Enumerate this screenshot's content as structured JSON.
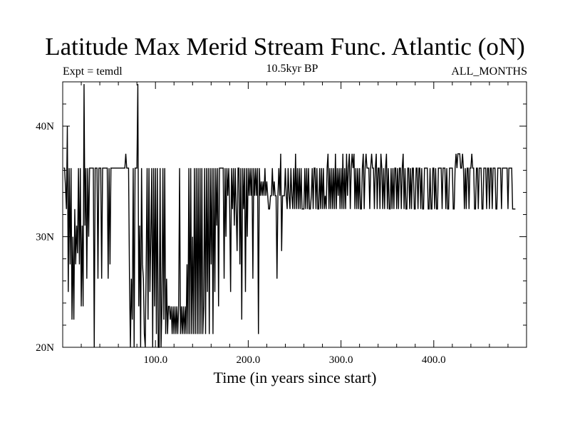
{
  "chart_data": {
    "type": "line",
    "title": "Latitude Max Merid Stream Func. Atlantic (oN)",
    "subtitle": "10.5kyr BP",
    "left_annotation": "Expt = temdl",
    "right_annotation": "ALL_MONTHS",
    "xlabel": "Time (in years since start)",
    "ylabel": "",
    "xlim": [
      0,
      500
    ],
    "ylim": [
      20,
      44
    ],
    "x_ticks": [
      {
        "value": 100,
        "label": "100.0"
      },
      {
        "value": 200,
        "label": "200.0"
      },
      {
        "value": 300,
        "label": "300.0"
      },
      {
        "value": 400,
        "label": "400.0"
      }
    ],
    "y_ticks": [
      {
        "value": 20,
        "label": "20N"
      },
      {
        "value": 30,
        "label": "30N"
      },
      {
        "value": 40,
        "label": "40N"
      }
    ],
    "grid": false,
    "series": [
      {
        "color": "#000000",
        "x_start": 1,
        "x_step": 1,
        "values": [
          36.2,
          36.2,
          34.5,
          32.5,
          40.0,
          25.0,
          36.2,
          27.5,
          36.2,
          22.5,
          30.0,
          22.5,
          32.5,
          27.5,
          31.0,
          28.5,
          36.2,
          27.5,
          36.2,
          23.7,
          31.0,
          23.7,
          43.8,
          31.0,
          36.2,
          26.2,
          36.2,
          30.0,
          36.2,
          36.2,
          36.2,
          36.2,
          36.2,
          20.0,
          36.2,
          36.2,
          36.2,
          26.2,
          36.2,
          36.2,
          36.2,
          26.2,
          36.2,
          36.2,
          36.2,
          36.2,
          36.2,
          36.2,
          26.2,
          36.2,
          27.5,
          36.2,
          36.2,
          36.2,
          36.2,
          36.2,
          36.2,
          36.2,
          36.2,
          36.2,
          36.2,
          36.2,
          36.2,
          36.2,
          36.2,
          36.2,
          36.2,
          37.5,
          36.2,
          36.2,
          36.2,
          26.2,
          20.0,
          26.2,
          22.5,
          36.2,
          20.0,
          36.2,
          36.2,
          36.2,
          43.8,
          23.7,
          31.0,
          20.0,
          36.2,
          27.5,
          26.2,
          21.2,
          20.0,
          27.5,
          36.2,
          22.5,
          36.2,
          25.0,
          30.0,
          36.2,
          20.0,
          36.2,
          23.7,
          36.2,
          21.2,
          36.2,
          20.0,
          20.0,
          36.2,
          20.0,
          23.7,
          36.2,
          22.5,
          36.2,
          21.2,
          26.2,
          21.2,
          23.7,
          23.7,
          22.5,
          23.7,
          21.2,
          23.7,
          21.2,
          23.7,
          21.2,
          23.7,
          21.2,
          23.7,
          36.2,
          21.2,
          23.7,
          21.2,
          23.7,
          21.2,
          23.7,
          21.2,
          27.5,
          21.2,
          36.2,
          21.2,
          36.2,
          21.2,
          30.0,
          21.2,
          36.2,
          21.2,
          36.2,
          21.2,
          36.2,
          21.2,
          36.2,
          21.2,
          36.2,
          21.2,
          23.7,
          36.2,
          21.2,
          36.2,
          25.0,
          36.2,
          21.2,
          36.2,
          27.5,
          36.2,
          21.2,
          36.2,
          25.0,
          36.2,
          31.0,
          36.2,
          23.7,
          36.2,
          36.2,
          36.2,
          36.2,
          36.2,
          26.2,
          36.2,
          30.0,
          36.2,
          33.7,
          36.2,
          32.5,
          25.0,
          36.2,
          32.5,
          36.2,
          31.0,
          36.2,
          32.5,
          28.7,
          36.2,
          36.2,
          27.5,
          36.2,
          22.5,
          36.2,
          32.5,
          36.2,
          25.0,
          36.2,
          30.0,
          36.2,
          33.7,
          36.2,
          33.7,
          36.2,
          26.2,
          36.2,
          33.7,
          36.2,
          33.7,
          36.2,
          21.2,
          36.2,
          33.7,
          35.0,
          33.7,
          35.0,
          33.7,
          36.2,
          33.7,
          35.0,
          33.7,
          32.5,
          32.5,
          33.7,
          33.7,
          36.2,
          33.7,
          35.0,
          33.7,
          33.7,
          26.2,
          33.7,
          36.2,
          33.7,
          37.5,
          28.7,
          33.7,
          33.7,
          33.7,
          36.2,
          33.7,
          32.5,
          36.2,
          33.7,
          32.5,
          36.2,
          33.7,
          32.5,
          36.2,
          32.5,
          37.5,
          32.5,
          36.2,
          32.5,
          36.2,
          32.5,
          36.2,
          32.5,
          32.5,
          32.5,
          36.2,
          32.5,
          36.2,
          32.5,
          36.2,
          32.5,
          32.5,
          33.7,
          36.2,
          32.5,
          36.2,
          36.2,
          32.5,
          36.2,
          32.5,
          32.5,
          36.2,
          32.5,
          36.2,
          32.5,
          36.2,
          32.5,
          33.7,
          32.5,
          36.2,
          37.5,
          32.5,
          36.2,
          32.5,
          36.2,
          32.5,
          36.2,
          32.5,
          37.5,
          32.5,
          36.2,
          33.7,
          36.2,
          32.5,
          36.2,
          32.5,
          37.5,
          32.5,
          36.2,
          32.5,
          37.5,
          33.7,
          36.2,
          37.5,
          32.5,
          36.2,
          37.5,
          36.2,
          37.5,
          32.5,
          36.2,
          32.5,
          36.2,
          32.5,
          36.2,
          32.5,
          32.5,
          36.2,
          37.5,
          32.5,
          36.2,
          37.5,
          36.2,
          36.2,
          36.2,
          32.5,
          36.2,
          37.5,
          36.2,
          36.2,
          32.5,
          36.2,
          37.5,
          32.5,
          36.2,
          36.2,
          32.5,
          37.5,
          36.2,
          32.5,
          36.2,
          32.5,
          36.2,
          37.5,
          32.5,
          36.2,
          32.5,
          32.5,
          36.2,
          32.5,
          36.2,
          32.5,
          36.2,
          36.2,
          32.5,
          36.2,
          32.5,
          36.2,
          36.2,
          32.5,
          36.2,
          37.5,
          32.5,
          36.2,
          32.5,
          32.5,
          36.2,
          36.2,
          32.5,
          36.2,
          32.5,
          36.2,
          36.2,
          32.5,
          32.5,
          36.2,
          36.2,
          32.5,
          36.2,
          36.2,
          32.5,
          36.2,
          32.5,
          32.5,
          36.2,
          36.2,
          36.2,
          36.2,
          32.5,
          32.5,
          36.2,
          32.5,
          32.5,
          36.2,
          36.2,
          32.5,
          36.2,
          32.5,
          32.5,
          36.2,
          36.2,
          36.2,
          36.2,
          32.5,
          36.2,
          36.2,
          36.2,
          32.5,
          36.2,
          32.5,
          32.5,
          36.2,
          36.2,
          36.2,
          36.2,
          32.5,
          32.5,
          36.2,
          37.5,
          36.2,
          37.5,
          37.5,
          37.5,
          36.2,
          36.2,
          37.5,
          36.2,
          32.5,
          36.2,
          32.5,
          36.2,
          36.2,
          32.5,
          36.2,
          36.2,
          37.5,
          36.2,
          36.2,
          32.5,
          32.5,
          36.2,
          36.2,
          32.5,
          36.2,
          36.2,
          36.2,
          32.5,
          32.5,
          36.2,
          36.2,
          36.2,
          32.5,
          36.2,
          36.2,
          32.5,
          36.2,
          36.2,
          32.5,
          36.2,
          36.2,
          36.2,
          32.5,
          32.5,
          36.2,
          36.2,
          36.2,
          36.2,
          32.5,
          36.2,
          36.2,
          36.2,
          36.2,
          36.2,
          36.2,
          32.5,
          36.2,
          36.2,
          36.2,
          36.2,
          32.5,
          32.5,
          32.5,
          32.5
        ]
      }
    ]
  }
}
